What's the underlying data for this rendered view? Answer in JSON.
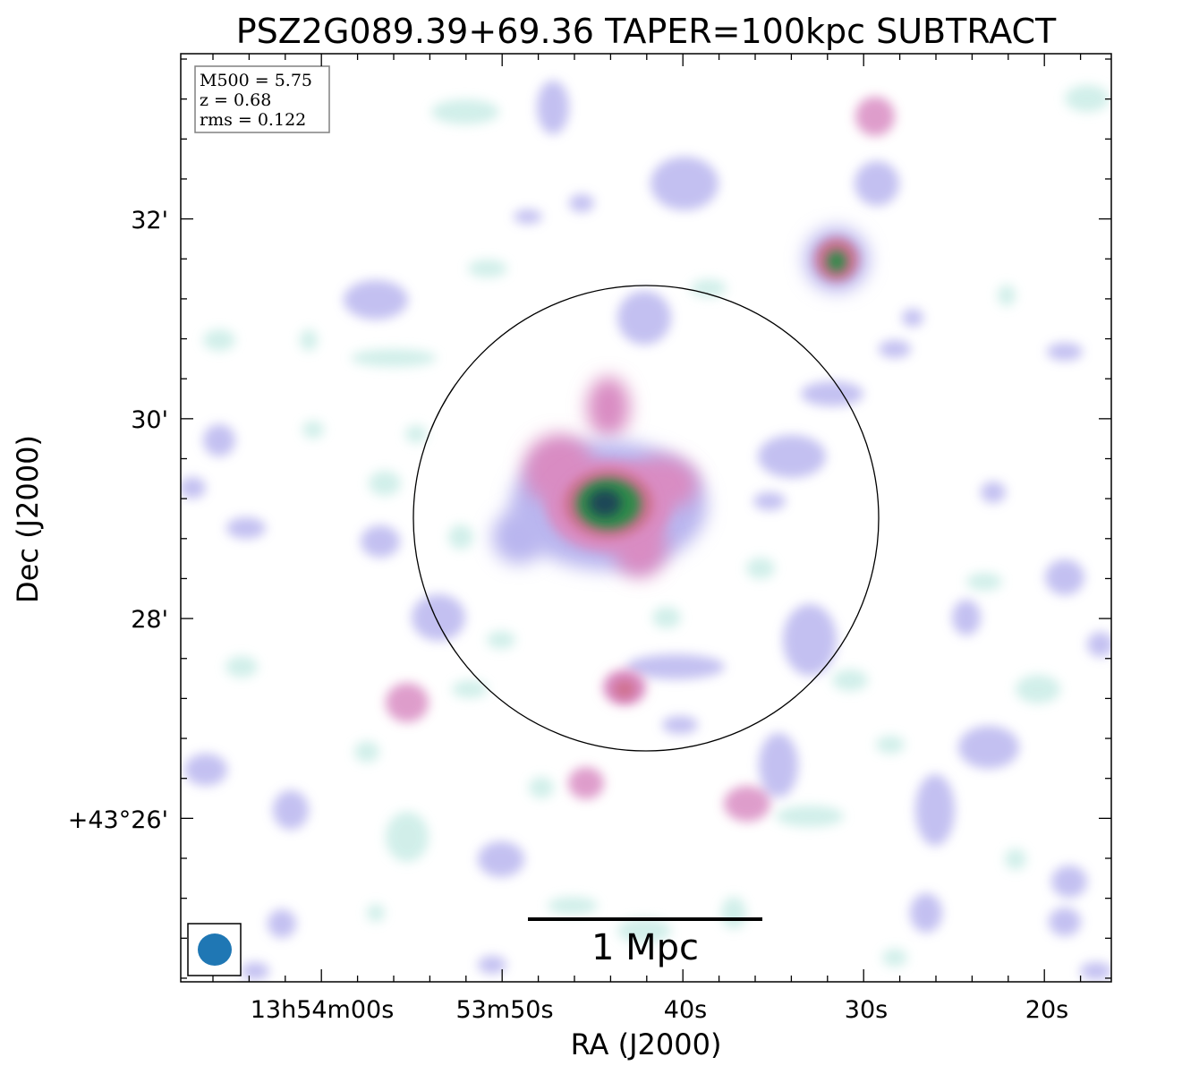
{
  "title": "PSZ2G089.39+69.36 TAPER=100kpc SUBTRACT",
  "axes": {
    "xlabel": "RA (J2000)",
    "ylabel": "Dec (J2000)",
    "x_ticks": [
      "13h54m00s",
      "53m50s",
      "40s",
      "30s",
      "20s"
    ],
    "y_ticks": [
      "32'",
      "30'",
      "28'",
      "+43°26'"
    ]
  },
  "info_box": {
    "lines": [
      "M500 = 5.75",
      "z = 0.68",
      "rms = 0.122"
    ]
  },
  "scale_bar": {
    "label": "1 Mpc"
  },
  "colors": {
    "faint": "#c9ece6",
    "lavender": "#b9b6ef",
    "pink": "#d98cc3",
    "rose": "#cf6f8e",
    "green": "#2e8a4a",
    "core": "#1c4757",
    "beam": "#1f77b4"
  }
}
